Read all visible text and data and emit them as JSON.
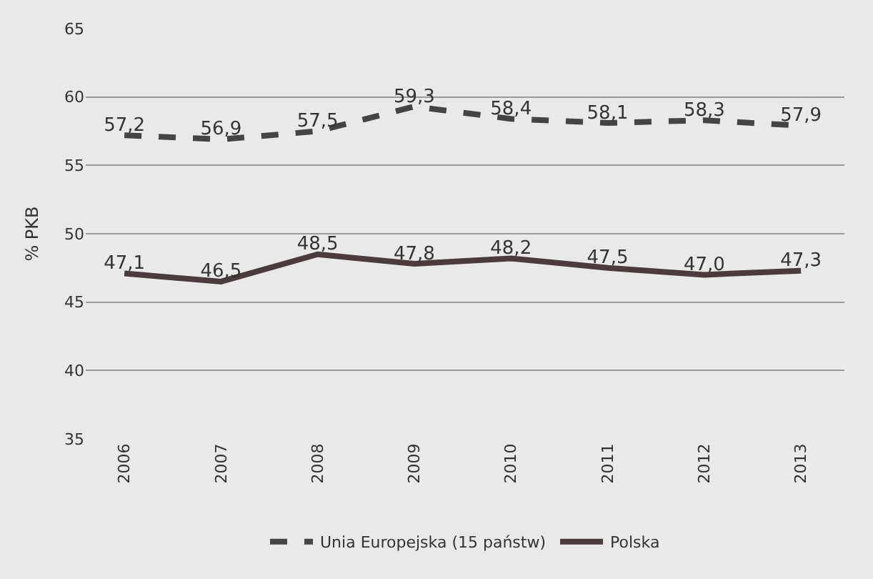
{
  "chart_data": {
    "type": "line",
    "ylabel": "% PKB",
    "categories": [
      "2006",
      "2007",
      "2008",
      "2009",
      "2010",
      "2011",
      "2012",
      "2013"
    ],
    "series": [
      {
        "name": "Unia Europejska (15 państw)",
        "color": "#444444",
        "line_style": "dashed",
        "values": [
          57.2,
          56.9,
          57.5,
          59.3,
          58.4,
          58.1,
          58.3,
          57.9
        ],
        "value_labels": [
          "57,2",
          "56,9",
          "57,5",
          "59,3",
          "58,4",
          "58,1",
          "58,3",
          "57,9"
        ]
      },
      {
        "name": "Polska",
        "color": "#4a3c3c",
        "line_style": "solid",
        "values": [
          47.1,
          46.5,
          48.5,
          47.8,
          48.2,
          47.5,
          47.0,
          47.3
        ],
        "value_labels": [
          "47,1",
          "46,5",
          "48,5",
          "47,8",
          "48,2",
          "47,5",
          "47,0",
          "47,3"
        ]
      }
    ],
    "ylim": [
      35,
      65
    ],
    "yticks": [
      35,
      40,
      45,
      50,
      55,
      60,
      65
    ],
    "grid": "y",
    "legend": "bottom",
    "marker": "none"
  }
}
